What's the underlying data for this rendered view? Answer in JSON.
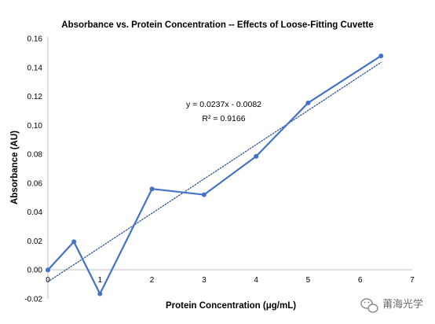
{
  "chart_data": {
    "type": "scatter",
    "title": "Absorbance vs. Protein Concentration -- Effects of Loose-Fitting Cuvette",
    "xlabel": "Protein Concentration (μg/mL)",
    "ylabel": "Absorbance (AU)",
    "xlim": [
      0,
      7
    ],
    "ylim": [
      -0.02,
      0.16
    ],
    "x_ticks": [
      "0",
      "1",
      "2",
      "3",
      "4",
      "5",
      "6",
      "7"
    ],
    "y_ticks": [
      "-0.02",
      "0.00",
      "0.02",
      "0.04",
      "0.06",
      "0.08",
      "0.10",
      "0.12",
      "0.14",
      "0.16"
    ],
    "grid": false,
    "legend": "none",
    "series": [
      {
        "x": [
          0,
          0.5,
          1.0,
          2.0,
          3.0,
          4.0,
          5.0,
          6.4
        ],
        "y": [
          0.0,
          0.0195,
          -0.0165,
          0.056,
          0.052,
          0.0785,
          0.1155,
          0.148
        ],
        "color": "#4472C4",
        "markers": true,
        "connected": true
      }
    ],
    "trendline": {
      "type": "linear",
      "slope": 0.0237,
      "intercept": -0.0082,
      "x_range": [
        0,
        6.4
      ],
      "style": "dotted",
      "color": "#2E5597"
    },
    "annotations": [
      "y = 0.0237x - 0.0082",
      "R² = 0.9166"
    ]
  },
  "watermark": {
    "text": "莆海光学",
    "icon": "wechat-icon"
  }
}
